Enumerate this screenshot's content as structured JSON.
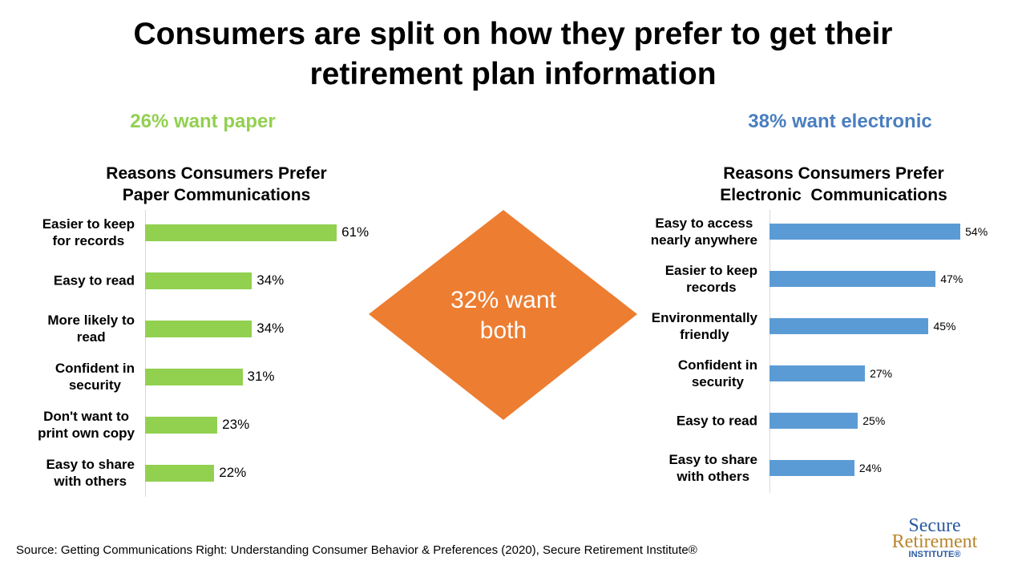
{
  "slide_title": "Consumers are split on how they prefer to get their\nretirement plan information",
  "paper_headline": "26% want paper",
  "electronic_headline": "38% want electronic",
  "both_label": "32% want\nboth",
  "source": "Source: Getting Communications Right: Understanding Consumer Behavior & Preferences (2020), Secure Retirement Institute®",
  "logo": {
    "line1": "Secure",
    "line2": "Retirement",
    "line3": "INSTITUTE®"
  },
  "chart_data": [
    {
      "type": "hbar",
      "title": "Reasons Consumers Prefer\nPaper Communications",
      "categories": [
        "Easier to keep\nfor records",
        "Easy to read",
        "More likely to\nread",
        "Confident in\nsecurity",
        "Don't want to\nprint own copy",
        "Easy to share\nwith others"
      ],
      "values": [
        61,
        34,
        34,
        31,
        23,
        22
      ],
      "value_labels": [
        "61%",
        "34%",
        "34%",
        "31%",
        "23%",
        "22%"
      ],
      "color": "#92d050"
    },
    {
      "type": "hbar",
      "title": "Reasons Consumers Prefer\nElectronic  Communications",
      "categories": [
        "Easy to access\nnearly anywhere",
        "Easier to keep\nrecords",
        "Environmentally\nfriendly",
        "Confident in\nsecurity",
        "Easy to read",
        "Easy to share\nwith others"
      ],
      "values": [
        54,
        47,
        45,
        27,
        25,
        24
      ],
      "value_labels": [
        "54%",
        "47%",
        "45%",
        "27%",
        "25%",
        "24%"
      ],
      "color": "#5b9bd5"
    }
  ]
}
